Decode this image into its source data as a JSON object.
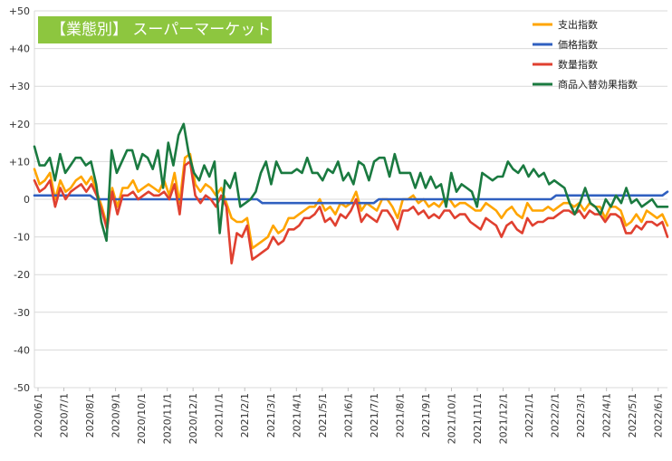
{
  "chart_data": {
    "type": "line",
    "title": "【業態別】 スーパーマーケット",
    "title_bg": "#8dc63f",
    "ylim": [
      -50,
      50
    ],
    "y_ticks": [
      "+50",
      "+40",
      "+30",
      "+20",
      "+10",
      "0",
      "-10",
      "-20",
      "-30",
      "-40",
      "-50"
    ],
    "x_labels": [
      "2020/6/1",
      "2020/7/1",
      "2020/8/1",
      "2020/9/1",
      "2020/10/1",
      "2020/11/1",
      "2020/12/1",
      "2021/1/1",
      "2021/2/1",
      "2021/3/1",
      "2021/4/1",
      "2021/5/1",
      "2021/6/1",
      "2021/7/1",
      "2021/8/1",
      "2021/9/1",
      "2021/10/1",
      "2021/11/1",
      "2021/12/1",
      "2022/1/1",
      "2022/2/1",
      "2022/3/1",
      "2022/4/1",
      "2022/5/1",
      "2022/6/1"
    ],
    "grid": "horizontal",
    "legend_position": "top-right",
    "series": [
      {
        "name": "支出指数",
        "color": "#ffa500",
        "values": [
          8,
          4,
          5,
          7,
          0,
          5,
          2,
          3,
          5,
          6,
          4,
          6,
          2,
          -2,
          -7,
          3,
          -2,
          3,
          3,
          5,
          2,
          3,
          4,
          3,
          2,
          5,
          1,
          7,
          -1,
          11,
          12,
          4,
          2,
          4,
          3,
          1,
          3,
          -1,
          -5,
          -6,
          -6,
          -5,
          -13,
          -12,
          -11,
          -10,
          -7,
          -9,
          -8,
          -5,
          -5,
          -4,
          -3,
          -2,
          -2,
          0,
          -3,
          -2,
          -4,
          -1,
          -2,
          -1,
          2,
          -3,
          -1,
          -2,
          -3,
          0,
          0,
          -2,
          -5,
          0,
          0,
          1,
          -1,
          0,
          -2,
          -1,
          -2,
          0,
          0,
          -2,
          -1,
          -1,
          -2,
          -3,
          -3,
          -1,
          -2,
          -3,
          -5,
          -3,
          -2,
          -4,
          -5,
          -1,
          -3,
          -3,
          -3,
          -2,
          -3,
          -2,
          -1,
          -1,
          -2,
          -1,
          -3,
          -1,
          -2,
          -2,
          -5,
          -2,
          -2,
          -3,
          -7,
          -6,
          -4,
          -6,
          -3,
          -4,
          -5,
          -4,
          -7
        ]
      },
      {
        "name": "価格指数",
        "color": "#3060c0",
        "values": [
          1,
          1,
          1,
          1,
          1,
          1,
          1,
          1,
          1,
          1,
          1,
          1,
          0,
          0,
          0,
          0,
          0,
          0,
          0,
          0,
          0,
          0,
          0,
          0,
          0,
          0,
          0,
          0,
          0,
          0,
          0,
          0,
          0,
          0,
          0,
          0,
          0,
          0,
          0,
          0,
          0,
          0,
          0,
          0,
          0,
          -1,
          -1,
          -1,
          -1,
          -1,
          -1,
          -1,
          -1,
          -1,
          -1,
          -1,
          -1,
          -1,
          -1,
          -1,
          -1,
          -1,
          -1,
          -1,
          -1,
          -1,
          -1,
          -1,
          0,
          0,
          0,
          0,
          0,
          0,
          0,
          0,
          0,
          0,
          0,
          0,
          0,
          0,
          0,
          0,
          0,
          0,
          0,
          0,
          0,
          0,
          0,
          0,
          0,
          0,
          0,
          0,
          0,
          0,
          0,
          0,
          0,
          0,
          0,
          1,
          1,
          1,
          1,
          1,
          1,
          1,
          1,
          1,
          1,
          1,
          1,
          1,
          1,
          1,
          1,
          1,
          1,
          1,
          1,
          1,
          1,
          2
        ]
      },
      {
        "name": "数量指数",
        "color": "#e04030",
        "values": [
          5,
          2,
          3,
          5,
          -2,
          3,
          0,
          2,
          3,
          4,
          2,
          4,
          1,
          -3,
          -8,
          2,
          -4,
          1,
          1,
          2,
          0,
          1,
          2,
          1,
          1,
          2,
          0,
          4,
          -4,
          9,
          10,
          1,
          -1,
          1,
          0,
          -2,
          1,
          -2,
          -17,
          -9,
          -10,
          -7,
          -16,
          -15,
          -14,
          -13,
          -10,
          -12,
          -11,
          -8,
          -8,
          -7,
          -5,
          -5,
          -4,
          -2,
          -6,
          -5,
          -7,
          -4,
          -5,
          -3,
          0,
          -6,
          -4,
          -5,
          -6,
          -3,
          -3,
          -5,
          -8,
          -3,
          -3,
          -2,
          -4,
          -3,
          -5,
          -4,
          -5,
          -3,
          -3,
          -5,
          -4,
          -4,
          -6,
          -7,
          -8,
          -5,
          -6,
          -7,
          -10,
          -7,
          -6,
          -8,
          -9,
          -5,
          -7,
          -6,
          -6,
          -5,
          -5,
          -4,
          -3,
          -3,
          -4,
          -3,
          -5,
          -3,
          -4,
          -4,
          -6,
          -4,
          -4,
          -5,
          -9,
          -9,
          -7,
          -8,
          -6,
          -6,
          -7,
          -6,
          -10
        ]
      },
      {
        "name": "商品入替効果指数",
        "color": "#1a7a40",
        "values": [
          14,
          9,
          9,
          11,
          5,
          12,
          7,
          9,
          11,
          11,
          9,
          10,
          4,
          -6,
          -11,
          13,
          7,
          10,
          13,
          13,
          8,
          12,
          11,
          8,
          13,
          3,
          15,
          9,
          17,
          20,
          12,
          7,
          5,
          9,
          6,
          10,
          -9,
          5,
          3,
          7,
          -2,
          -1,
          0,
          2,
          7,
          10,
          4,
          10,
          7,
          7,
          7,
          8,
          7,
          11,
          7,
          7,
          5,
          8,
          7,
          10,
          5,
          7,
          4,
          10,
          9,
          5,
          10,
          11,
          11,
          6,
          12,
          7,
          7,
          7,
          3,
          7,
          3,
          6,
          3,
          4,
          -2,
          7,
          2,
          4,
          3,
          2,
          -2,
          7,
          6,
          5,
          6,
          6,
          10,
          8,
          7,
          9,
          6,
          8,
          6,
          7,
          4,
          5,
          4,
          3,
          -1,
          -4,
          -1,
          3,
          -1,
          -2,
          -4,
          0,
          -2,
          1,
          -1,
          3,
          -1,
          0,
          -2,
          -1,
          0,
          -2,
          -2,
          -2
        ]
      }
    ]
  }
}
